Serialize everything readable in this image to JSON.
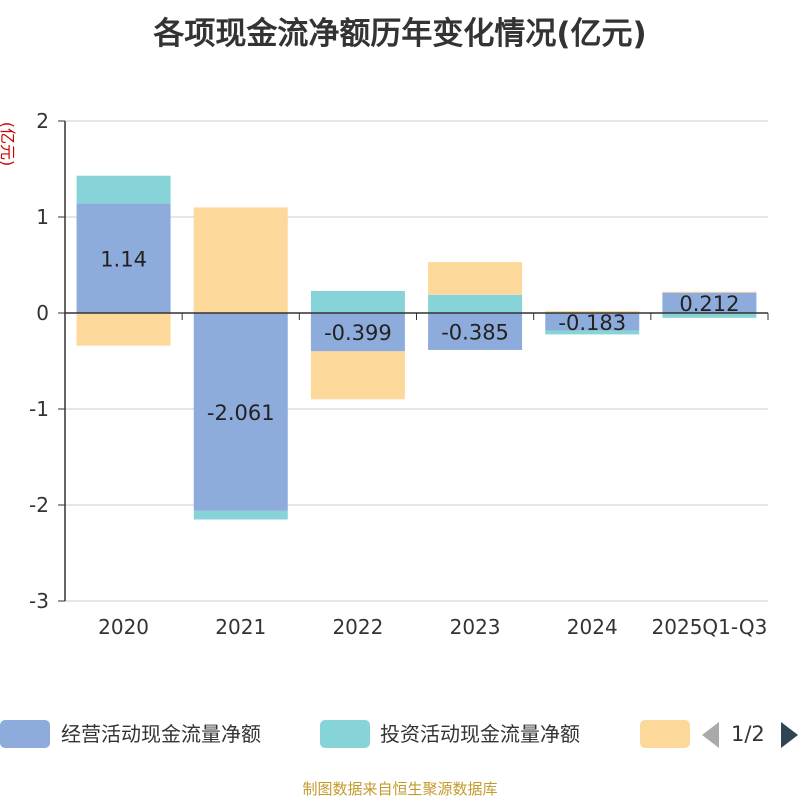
{
  "colors": {
    "operating": "#8eacdb",
    "investing": "#86d4d8",
    "financing": "#fdd89b",
    "axis": "#333333",
    "grid": "#cccccc",
    "unit": "#cc0000",
    "source": "#c49a2c"
  },
  "legend": {
    "items": [
      {
        "name": "经营活动现金流量净额",
        "color": "#8eacdb"
      },
      {
        "name": "投资活动现金流量净额",
        "color": "#86d4d8"
      },
      {
        "name": "",
        "color": "#fdd89b"
      }
    ],
    "pager_text": "1/2"
  },
  "source_note": "制图数据来自恒生聚源数据库",
  "chart_data": {
    "type": "bar",
    "stacked": true,
    "title": "各项现金流净额历年变化情况(亿元)",
    "ylabel": "(亿元)",
    "xlabel": "",
    "ylim": [
      -3,
      2
    ],
    "yticks": [
      2,
      1,
      0,
      -1,
      -2,
      -3
    ],
    "grid": true,
    "legend_position": "bottom",
    "categories": [
      "2020",
      "2021",
      "2022",
      "2023",
      "2024",
      "2025Q1-Q3"
    ],
    "series": [
      {
        "name": "经营活动现金流量净额",
        "values": [
          1.14,
          -2.061,
          -0.399,
          -0.385,
          -0.183,
          0.212
        ],
        "labels": [
          "1.14",
          "-2.061",
          "-0.399",
          "-0.385",
          "-0.183",
          "0.212"
        ]
      },
      {
        "name": "投资活动现金流量净额",
        "values": [
          0.29,
          -0.09,
          0.23,
          0.19,
          -0.04,
          -0.05
        ]
      },
      {
        "values": [
          -0.34,
          1.1,
          -0.5,
          0.34,
          0.02,
          0.01
        ]
      }
    ]
  }
}
